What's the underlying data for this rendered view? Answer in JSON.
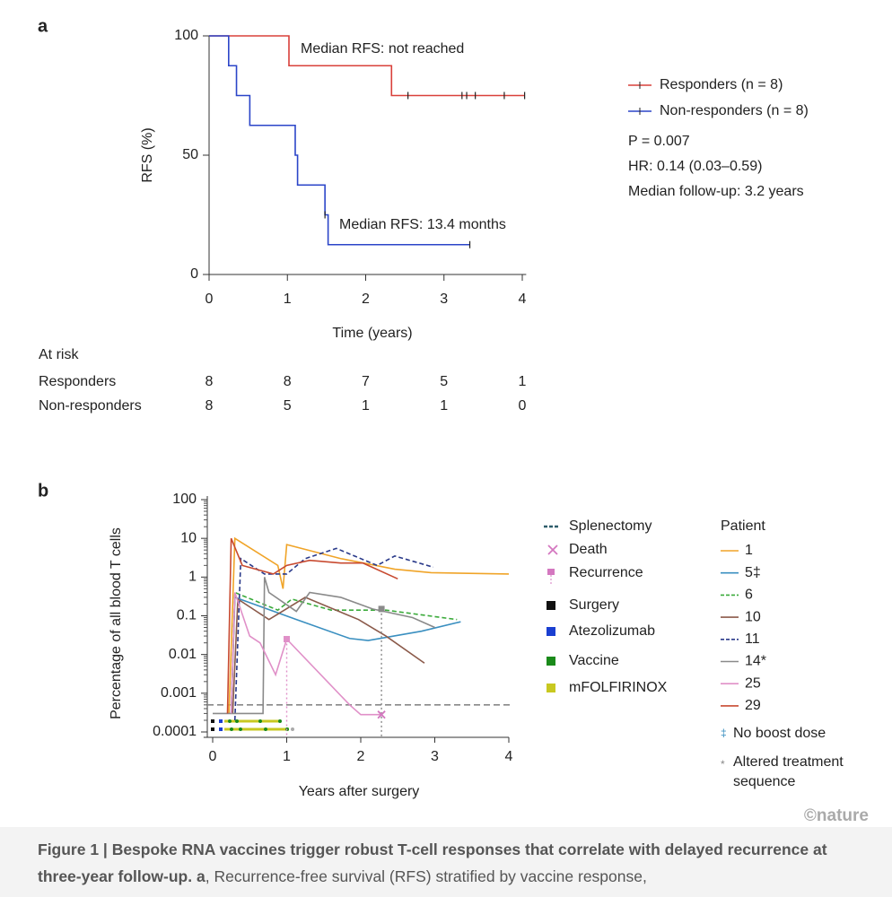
{
  "panel_labels": [
    "a",
    "b"
  ],
  "watermark": "©nature",
  "chart_data": [
    {
      "type": "step",
      "step": "post",
      "x_label": "Time (years)",
      "y_label": "RFS (%)",
      "xlim": [
        0,
        4.05
      ],
      "xticks": [
        0,
        1,
        2,
        3,
        4
      ],
      "ylim": [
        0,
        100
      ],
      "yticks": [
        0,
        50,
        100
      ],
      "annotations": [
        {
          "text": "Median RFS: not reached"
        },
        {
          "text": "Median RFS: 13.4 months"
        }
      ],
      "series": [
        {
          "name": "Responders (n = 8)",
          "color": "#d9403a",
          "x": [
            0,
            1.02,
            2.33,
            4.03
          ],
          "values": [
            100,
            87.5,
            75,
            75
          ],
          "censored": [
            2.54,
            3.23,
            3.29,
            3.4,
            3.77,
            4.03
          ]
        },
        {
          "name": "Non-responders (n = 8)",
          "color": "#2b45c8",
          "x": [
            0,
            0.25,
            0.35,
            0.52,
            1.1,
            1.13,
            1.48,
            1.52,
            3.33
          ],
          "values": [
            100,
            87.5,
            75,
            62.5,
            50,
            37.5,
            25,
            12.5,
            12.5
          ],
          "censored": [
            1.48,
            3.33
          ]
        }
      ],
      "stats": [
        "P = 0.007",
        "HR: 0.14 (0.03–0.59)",
        "Median follow-up: 3.2 years"
      ],
      "at_risk": {
        "title": "At risk",
        "rows": [
          {
            "name": "Responders",
            "values": [
              8,
              8,
              7,
              5,
              1
            ]
          },
          {
            "name": "Non-responders",
            "values": [
              8,
              5,
              1,
              1,
              0
            ]
          }
        ]
      }
    },
    {
      "type": "line",
      "y_scale": "log",
      "x_label": "Years after surgery",
      "y_label": "Percentage of all blood T cells",
      "xlim": [
        -0.05,
        4
      ],
      "xticks": [
        0,
        1,
        2,
        3,
        4
      ],
      "ylim": [
        0.0001,
        100
      ],
      "yticks": [
        0.0001,
        0.001,
        0.01,
        0.1,
        1,
        10,
        100
      ],
      "threshold": 0.0005,
      "legend_title": "Patient",
      "series": [
        {
          "name": "1",
          "color": "#f0a428",
          "dashed": false,
          "x": [
            0.22,
            0.3,
            0.88,
            0.95,
            1.0,
            1.73,
            2.46,
            2.95,
            4.0
          ],
          "values": [
            0.0003,
            10,
            2,
            0.5,
            6.9,
            3,
            1.6,
            1.3,
            1.2
          ]
        },
        {
          "name": "5‡",
          "color": "#3a8fc0",
          "dashed": false,
          "x": [
            0.25,
            0.3,
            1.13,
            1.85,
            2.1,
            2.82,
            3.35
          ],
          "values": [
            0.0003,
            0.3,
            0.08,
            0.026,
            0.023,
            0.04,
            0.07
          ]
        },
        {
          "name": "6",
          "color": "#3aaa3a",
          "dashed": true,
          "x": [
            0.25,
            0.3,
            0.88,
            1.07,
            1.6,
            2.34,
            3.3
          ],
          "values": [
            0.0003,
            0.4,
            0.14,
            0.27,
            0.14,
            0.14,
            0.08
          ]
        },
        {
          "name": "10",
          "color": "#8b5a4a",
          "dashed": false,
          "x": [
            0.27,
            0.34,
            0.76,
            1.25,
            1.97,
            2.34,
            2.86
          ],
          "values": [
            0.0003,
            0.27,
            0.08,
            0.3,
            0.08,
            0.03,
            0.006
          ]
        },
        {
          "name": "11",
          "color": "#2a3a8a",
          "dashed": true,
          "x": [
            0.3,
            0.38,
            0.7,
            1.0,
            1.25,
            1.67,
            2.22,
            2.46,
            2.98
          ],
          "values": [
            0.0002,
            3,
            1.2,
            1.2,
            3,
            5.5,
            2,
            3.5,
            1.8
          ]
        },
        {
          "name": "14*",
          "color": "#8a8a8a",
          "dashed": false,
          "x": [
            0,
            0.68,
            0.7,
            0.76,
            1.13,
            1.31,
            1.73,
            2.16,
            2.7,
            3.0
          ],
          "values": [
            0.0003,
            0.0003,
            1,
            0.4,
            0.13,
            0.4,
            0.3,
            0.15,
            0.09,
            0.05
          ]
        },
        {
          "name": "25",
          "color": "#e090c8",
          "dashed": false,
          "x": [
            0.25,
            0.3,
            0.5,
            0.64,
            0.85,
            1.0,
            1.85,
            2.0,
            2.28
          ],
          "values": [
            0.0003,
            0.4,
            0.03,
            0.02,
            0.003,
            0.025,
            0.0005,
            0.00028,
            0.00028
          ]
        },
        {
          "name": "29",
          "color": "#c84a30",
          "dashed": false,
          "x": [
            0.2,
            0.25,
            0.4,
            0.82,
            1.0,
            1.31,
            1.73,
            2.03,
            2.5
          ],
          "values": [
            0.0003,
            10,
            2,
            1.2,
            2,
            2.7,
            2.3,
            2.3,
            0.9
          ]
        }
      ],
      "recurrences": [
        {
          "x": 1.0,
          "y": 0.025,
          "color": "#e090c8"
        },
        {
          "x": 2.28,
          "y": 0.15,
          "color": "#8a8a8a"
        }
      ],
      "deaths": [
        {
          "x": 2.28,
          "y": 0.00028
        }
      ],
      "event_legend": [
        {
          "label": "Splenectomy",
          "color": "#2e5d6b"
        },
        {
          "label": "Death",
          "color": "#d478c0"
        },
        {
          "label": "Recurrence",
          "color": "#d478c0"
        },
        {
          "label": "Surgery",
          "color": "#111111"
        },
        {
          "label": "Atezolizumab",
          "color": "#1a3fd1"
        },
        {
          "label": "Vaccine",
          "color": "#1a8a1a"
        },
        {
          "label": "mFOLFIRINOX",
          "color": "#c8c820"
        }
      ],
      "footnotes": [
        {
          "symbol": "‡",
          "text": "No boost dose"
        },
        {
          "symbol": "*",
          "text": "Altered treatment sequence"
        }
      ]
    }
  ],
  "caption": {
    "bold": "Figure 1 | Bespoke RNA vaccines trigger robust T-cell responses that correlate with delayed recurrence at three-year follow-up.",
    "panel": "a",
    "text": ", Recurrence-free survival (RFS) stratified by vaccine response,"
  }
}
